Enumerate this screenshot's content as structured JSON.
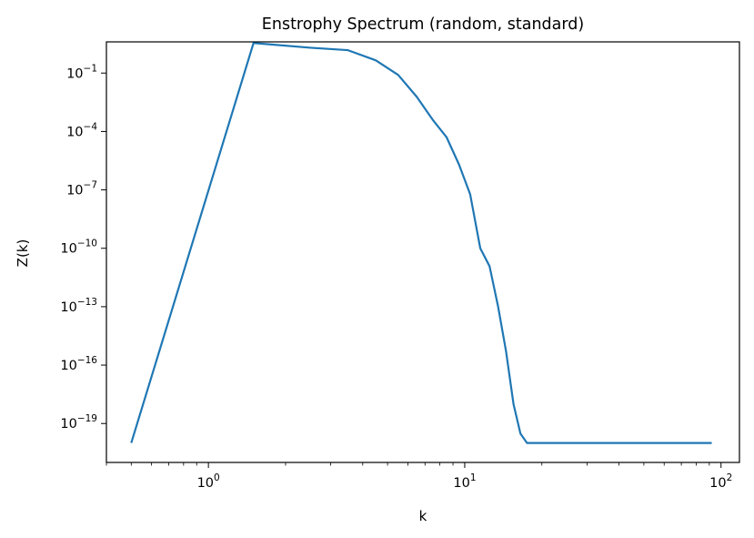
{
  "chart_data": {
    "type": "line",
    "title": "Enstrophy Spectrum (random, standard)",
    "xlabel": "k",
    "ylabel": "Z(k)",
    "xscale": "log",
    "yscale": "log",
    "xlim": [
      0.4,
      118
    ],
    "ylim": [
      1e-21,
      4
    ],
    "grid": false,
    "x_ticks": [
      {
        "value": 1,
        "base": "10",
        "exp": "0"
      },
      {
        "value": 10,
        "base": "10",
        "exp": "1"
      },
      {
        "value": 100,
        "base": "10",
        "exp": "2"
      }
    ],
    "y_ticks": [
      {
        "value": 0.1,
        "base": "10",
        "exp": "−1"
      },
      {
        "value": 0.0001,
        "base": "10",
        "exp": "−4"
      },
      {
        "value": 1e-07,
        "base": "10",
        "exp": "−7"
      },
      {
        "value": 1e-10,
        "base": "10",
        "exp": "−10"
      },
      {
        "value": 1e-13,
        "base": "10",
        "exp": "−13"
      },
      {
        "value": 1e-16,
        "base": "10",
        "exp": "−16"
      },
      {
        "value": 1e-19,
        "base": "10",
        "exp": "−19"
      }
    ],
    "series": [
      {
        "color": "#1f77b4",
        "x": [
          0.5,
          1.5,
          2.5,
          3.5,
          4.5,
          5.5,
          6.5,
          7.5,
          8.5,
          9.5,
          10.5,
          11.5,
          12.5,
          13.5,
          14.5,
          15.5,
          16.5,
          17.5,
          20,
          30,
          50,
          92
        ],
        "y": [
          1e-20,
          3.5,
          2.0,
          1.5,
          0.45,
          0.08,
          0.006,
          0.0004,
          5e-05,
          2e-06,
          6e-08,
          1e-10,
          1.2e-11,
          1e-13,
          5e-16,
          1e-18,
          3e-20,
          1e-20,
          1e-20,
          1e-20,
          1e-20,
          1e-20
        ]
      }
    ]
  }
}
